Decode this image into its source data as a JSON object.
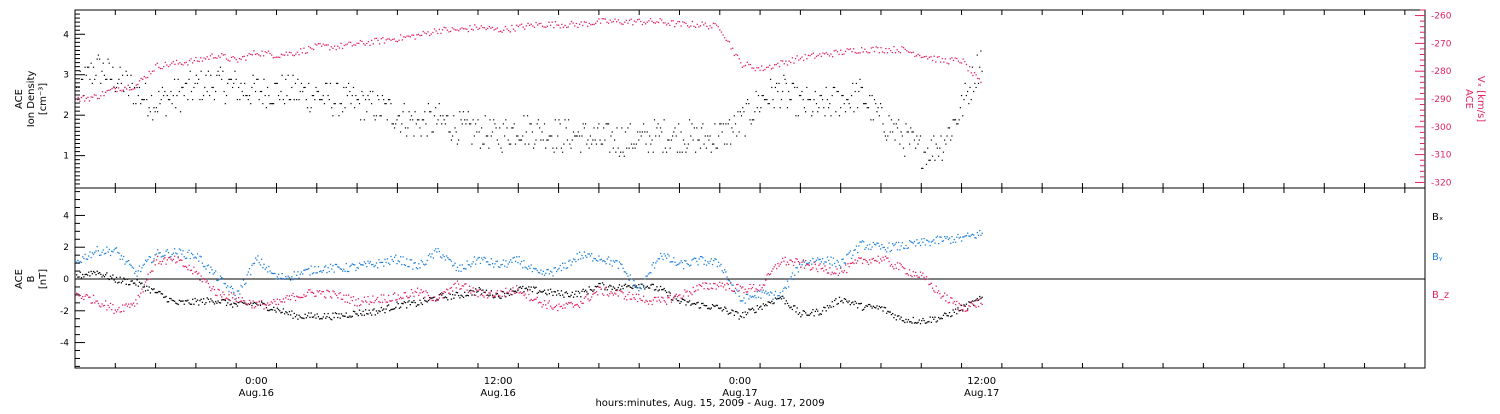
{
  "colors": {
    "density": "#000000",
    "vx": "#e0245e",
    "bx": "#000000",
    "by": "#1e7fd9",
    "bz": "#e0245e",
    "axis": "#000000"
  },
  "x_axis": {
    "title": "hours:minutes, Aug. 15, 2009 - Aug. 17, 2009",
    "range_hours": [
      -9,
      58
    ],
    "tick_labels": [
      {
        "hours": 0,
        "time": "0:00",
        "date": "Aug.16"
      },
      {
        "hours": 12,
        "time": "12:00",
        "date": "Aug.16"
      },
      {
        "hours": 24,
        "time": "0:00",
        "date": "Aug.17"
      },
      {
        "hours": 36,
        "time": "12:00",
        "date": "Aug.17"
      }
    ]
  },
  "chart_data": [
    {
      "type": "scatter",
      "panel": "top",
      "ylabel_lines": [
        "ACE",
        "Ion Density",
        "[cm⁻³]"
      ],
      "ylim": [
        0.2,
        4.6
      ],
      "yticks": [
        1,
        2,
        3,
        4
      ],
      "ytick_labels": [
        "1",
        "2",
        "3",
        "4"
      ],
      "y2label_lines": [
        "ACE",
        "Vₓ [km/s]"
      ],
      "y2lim": [
        -322,
        -258
      ],
      "y2ticks": [
        -320,
        -310,
        -300,
        -290,
        -280,
        -270,
        -260
      ],
      "y2tick_labels": [
        "-320",
        "-310",
        "-300",
        "-290",
        "-280",
        "-270",
        "-260"
      ],
      "series": [
        {
          "key": "density",
          "axis": "left",
          "x": [
            -9,
            -8,
            -7,
            -6,
            -5,
            -4,
            -3,
            -2,
            -1,
            0,
            1,
            2,
            3,
            4,
            5,
            6,
            7,
            8,
            9,
            10,
            11,
            12,
            13,
            14,
            15,
            16,
            17,
            18,
            19,
            20,
            21,
            22,
            23,
            24,
            25,
            26,
            27,
            28,
            29,
            30,
            31,
            32,
            33,
            34,
            35,
            36
          ],
          "y": [
            2.5,
            3.2,
            2.9,
            2.6,
            2.3,
            2.5,
            2.7,
            2.8,
            2.7,
            2.6,
            2.6,
            2.6,
            2.5,
            2.4,
            2.3,
            2.2,
            2.0,
            1.8,
            1.9,
            1.7,
            1.6,
            1.5,
            1.7,
            1.6,
            1.5,
            1.5,
            1.4,
            1.4,
            1.4,
            1.5,
            1.5,
            1.4,
            1.5,
            1.8,
            2.4,
            2.6,
            2.3,
            2.2,
            2.4,
            2.5,
            1.9,
            1.5,
            1.1,
            1.3,
            2.2,
            3.5
          ],
          "spread": 0.42
        },
        {
          "key": "vx",
          "axis": "right",
          "x": [
            -9,
            -8,
            -7,
            -6,
            -5,
            -4,
            -3,
            -2,
            -1,
            0,
            1,
            2,
            3,
            4,
            5,
            6,
            7,
            8,
            9,
            10,
            11,
            12,
            13,
            14,
            15,
            16,
            17,
            18,
            19,
            20,
            21,
            22,
            23,
            24,
            25,
            26,
            27,
            28,
            29,
            30,
            31,
            32,
            33,
            34,
            35,
            36
          ],
          "y": [
            -290,
            -289,
            -286,
            -285,
            -278,
            -277,
            -276,
            -274,
            -276,
            -273,
            -274,
            -273,
            -271,
            -271,
            -270,
            -269,
            -268,
            -267,
            -265,
            -265,
            -264,
            -265,
            -264,
            -263,
            -263,
            -263,
            -262,
            -262,
            -262,
            -262,
            -263,
            -263,
            -264,
            -277,
            -279,
            -277,
            -275,
            -274,
            -273,
            -272,
            -272,
            -272,
            -274,
            -276,
            -276,
            -285
          ],
          "spread": 1.2
        }
      ]
    },
    {
      "type": "scatter",
      "panel": "bottom",
      "ylabel_lines": [
        "ACE",
        "B",
        "[nT]"
      ],
      "ylim": [
        -5.6,
        5.6
      ],
      "yticks": [
        -4,
        -2,
        0,
        2,
        4
      ],
      "ytick_labels": [
        "-4",
        "-2",
        "0",
        "2",
        "4"
      ],
      "zero_line": true,
      "legend_position": "right",
      "series": [
        {
          "key": "bx",
          "name": "Bₓ",
          "x": [
            -9,
            -8,
            -7,
            -6,
            -5,
            -4,
            -3,
            -2,
            -1,
            0,
            1,
            2,
            3,
            4,
            5,
            6,
            7,
            8,
            9,
            10,
            11,
            12,
            13,
            14,
            15,
            16,
            17,
            18,
            19,
            20,
            21,
            22,
            23,
            24,
            25,
            26,
            27,
            28,
            29,
            30,
            31,
            32,
            33,
            34,
            35,
            36
          ],
          "y": [
            0.2,
            0.5,
            0.0,
            -0.2,
            -0.8,
            -1.5,
            -1.4,
            -1.3,
            -1.6,
            -1.5,
            -1.9,
            -2.3,
            -2.3,
            -2.3,
            -2.1,
            -2.0,
            -1.6,
            -1.5,
            -1.1,
            -1.0,
            -0.7,
            -1.0,
            -0.6,
            -0.7,
            -0.9,
            -0.9,
            -0.4,
            -0.5,
            -0.3,
            -0.6,
            -1.4,
            -1.6,
            -1.8,
            -2.3,
            -1.7,
            -1.1,
            -2.2,
            -2.0,
            -1.2,
            -1.7,
            -1.8,
            -2.5,
            -2.6,
            -2.4,
            -1.8,
            -1.2
          ],
          "spread": 0.22
        },
        {
          "key": "by",
          "name": "Bᵧ",
          "x": [
            -9,
            -8,
            -7,
            -6,
            -5,
            -4,
            -3,
            -2,
            -1,
            0,
            1,
            2,
            3,
            4,
            5,
            6,
            7,
            8,
            9,
            10,
            11,
            12,
            13,
            14,
            15,
            16,
            17,
            18,
            19,
            20,
            21,
            22,
            23,
            24,
            25,
            26,
            27,
            28,
            29,
            30,
            31,
            32,
            33,
            34,
            35,
            36
          ],
          "y": [
            1.1,
            1.8,
            1.8,
            0.4,
            1.6,
            1.7,
            1.5,
            0.2,
            -1.0,
            1.3,
            0.1,
            0.3,
            0.7,
            0.7,
            0.8,
            1.0,
            1.3,
            0.8,
            1.8,
            0.6,
            1.3,
            0.9,
            1.2,
            0.3,
            0.6,
            1.5,
            1.4,
            0.9,
            -0.7,
            1.6,
            0.9,
            1.2,
            1.0,
            -1.3,
            -0.9,
            -1.0,
            1.0,
            1.3,
            1.0,
            2.2,
            2.0,
            2.1,
            2.3,
            2.5,
            2.6,
            2.9
          ],
          "spread": 0.28
        },
        {
          "key": "bz",
          "name": "B_z",
          "x": [
            -9,
            -8,
            -7,
            -6,
            -5,
            -4,
            -3,
            -2,
            -1,
            0,
            1,
            2,
            3,
            4,
            5,
            6,
            7,
            8,
            9,
            10,
            11,
            12,
            13,
            14,
            15,
            16,
            17,
            18,
            19,
            20,
            21,
            22,
            23,
            24,
            25,
            26,
            27,
            28,
            29,
            30,
            31,
            32,
            33,
            34,
            35,
            36
          ],
          "y": [
            -0.9,
            -1.3,
            -1.9,
            -1.4,
            1.2,
            1.2,
            0.4,
            -0.8,
            -1.2,
            -1.6,
            -1.5,
            -1.0,
            -0.8,
            -1.0,
            -1.4,
            -1.2,
            -1.1,
            -0.8,
            -1.2,
            -0.3,
            -0.9,
            -0.9,
            -0.6,
            -1.4,
            -1.8,
            -1.5,
            -0.7,
            -0.9,
            -1.2,
            -1.4,
            -1.0,
            -0.5,
            -0.3,
            -0.6,
            -0.5,
            1.2,
            1.0,
            0.7,
            0.5,
            1.2,
            1.3,
            0.7,
            0.2,
            -1.0,
            -1.8,
            -1.4
          ],
          "spread": 0.28
        }
      ]
    }
  ]
}
